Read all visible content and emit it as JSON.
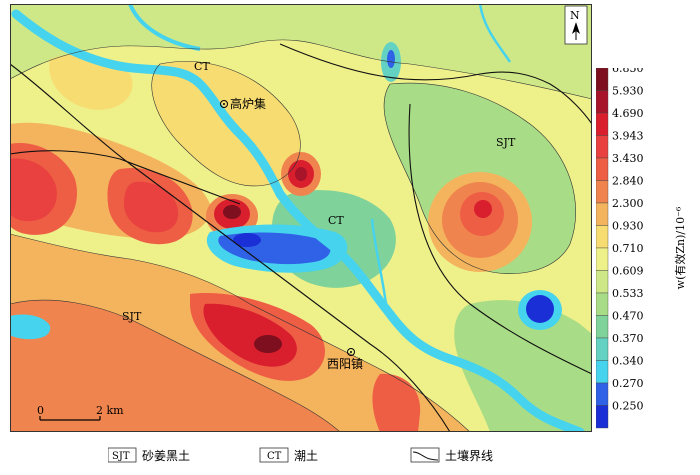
{
  "map": {
    "north_label": "N",
    "scale_labels": [
      "0",
      "2 km"
    ],
    "place_names": [
      {
        "name": "CT"
      },
      {
        "name": "高炉集"
      },
      {
        "name": "SJT"
      },
      {
        "name": "CT"
      },
      {
        "name": "SJT"
      },
      {
        "name": "西阳镇"
      }
    ]
  },
  "colorbar": {
    "axis_label": "w(有效Zn)/10⁻⁶",
    "stops": [
      {
        "value": "6.850",
        "color": "#7d0f1e"
      },
      {
        "value": "5.930",
        "color": "#a8142a"
      },
      {
        "value": "4.690",
        "color": "#d91e2e"
      },
      {
        "value": "3.943",
        "color": "#e8413f"
      },
      {
        "value": "3.430",
        "color": "#ee5e45"
      },
      {
        "value": "2.840",
        "color": "#f0844f"
      },
      {
        "value": "2.300",
        "color": "#f4b45d"
      },
      {
        "value": "0.930",
        "color": "#f7dc72"
      },
      {
        "value": "0.710",
        "color": "#eef08a"
      },
      {
        "value": "0.609",
        "color": "#cfe887"
      },
      {
        "value": "0.533",
        "color": "#a9dc86"
      },
      {
        "value": "0.470",
        "color": "#7fd29a"
      },
      {
        "value": "0.370",
        "color": "#63d2c2"
      },
      {
        "value": "0.340",
        "color": "#46d3ee"
      },
      {
        "value": "0.270",
        "color": "#2f62e6"
      },
      {
        "value": "0.250",
        "color": "#1b2fd6"
      }
    ]
  },
  "legend": {
    "items": [
      {
        "code": "SJT",
        "label": "砂姜黑土"
      },
      {
        "code": "CT",
        "label": "潮土"
      },
      {
        "code": "",
        "label": "土壤界线"
      }
    ]
  }
}
